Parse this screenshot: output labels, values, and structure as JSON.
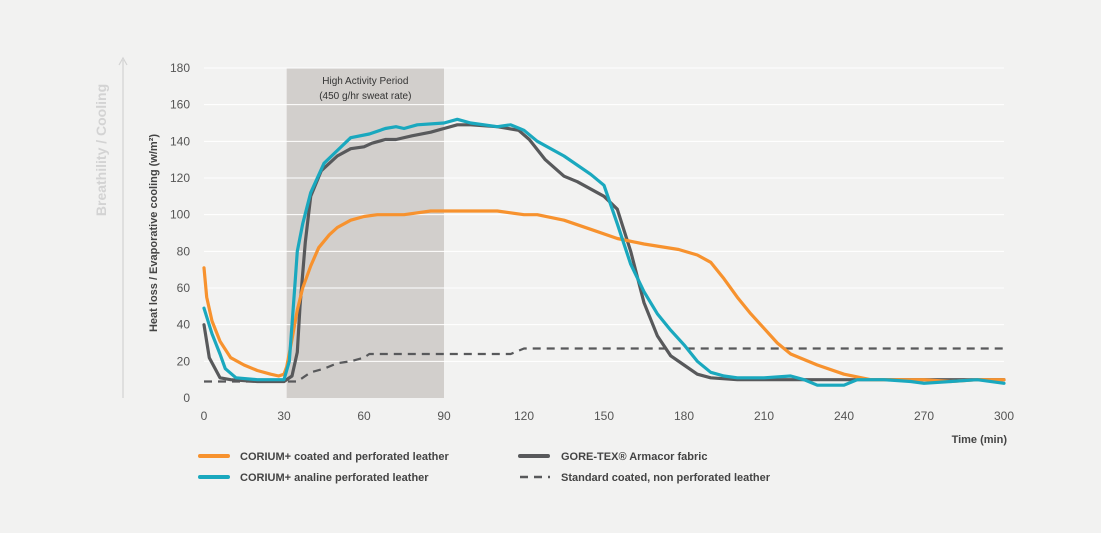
{
  "colors": {
    "background": "#f2f2f1",
    "grid": "#ffffff",
    "shade": "#d2cfcc",
    "orange": "#f7922e",
    "teal": "#1aa8be",
    "dark": "#58595b",
    "dashed": "#58595b",
    "side_title": "#d3d3d3"
  },
  "chart_data": {
    "type": "line",
    "title": "",
    "side_title": "Breathility / Cooling",
    "ylabel": "Heat loss / Evaporative cooling (w/m²)",
    "xlabel": "Time (min)",
    "xlim": [
      0,
      300
    ],
    "ylim": [
      0,
      180
    ],
    "x_ticks": [
      0,
      30,
      60,
      90,
      120,
      150,
      180,
      210,
      240,
      270,
      300
    ],
    "y_ticks": [
      0,
      20,
      40,
      60,
      80,
      100,
      120,
      140,
      160,
      180
    ],
    "grid": "horizontal",
    "legend_position": "bottom",
    "shaded_region": {
      "x_range": [
        31,
        90
      ],
      "label_line1": "High Activity Period",
      "label_line2": "(450 g/hr sweat rate)"
    },
    "series": [
      {
        "name": "CORIUM+ coated and perforated leather",
        "color": "#f7922e",
        "style": "solid",
        "points": [
          [
            0,
            71
          ],
          [
            1,
            55
          ],
          [
            3,
            42
          ],
          [
            6,
            31
          ],
          [
            10,
            22
          ],
          [
            15,
            18
          ],
          [
            20,
            15
          ],
          [
            25,
            13
          ],
          [
            28,
            12
          ],
          [
            30,
            13
          ],
          [
            31,
            17
          ],
          [
            33,
            32
          ],
          [
            35,
            48
          ],
          [
            37,
            60
          ],
          [
            40,
            72
          ],
          [
            43,
            82
          ],
          [
            47,
            89
          ],
          [
            50,
            93
          ],
          [
            55,
            97
          ],
          [
            60,
            99
          ],
          [
            65,
            100
          ],
          [
            75,
            100
          ],
          [
            85,
            102
          ],
          [
            100,
            102
          ],
          [
            110,
            102
          ],
          [
            120,
            100
          ],
          [
            125,
            100
          ],
          [
            135,
            97
          ],
          [
            145,
            92
          ],
          [
            155,
            87
          ],
          [
            165,
            84
          ],
          [
            178,
            81
          ],
          [
            185,
            78
          ],
          [
            190,
            74
          ],
          [
            195,
            65
          ],
          [
            200,
            55
          ],
          [
            205,
            46
          ],
          [
            210,
            38
          ],
          [
            215,
            30
          ],
          [
            220,
            24
          ],
          [
            230,
            18
          ],
          [
            240,
            13
          ],
          [
            250,
            10
          ],
          [
            260,
            10
          ],
          [
            270,
            10
          ],
          [
            280,
            9
          ],
          [
            290,
            10
          ],
          [
            300,
            10
          ]
        ]
      },
      {
        "name": "CORIUM+ analine perforated leather",
        "color": "#1aa8be",
        "style": "solid",
        "points": [
          [
            0,
            49
          ],
          [
            3,
            35
          ],
          [
            6,
            24
          ],
          [
            8,
            16
          ],
          [
            12,
            11
          ],
          [
            20,
            10
          ],
          [
            30,
            10
          ],
          [
            32,
            20
          ],
          [
            33,
            40
          ],
          [
            34,
            60
          ],
          [
            35,
            80
          ],
          [
            37,
            95
          ],
          [
            40,
            112
          ],
          [
            45,
            128
          ],
          [
            50,
            135
          ],
          [
            55,
            142
          ],
          [
            62,
            144
          ],
          [
            68,
            147
          ],
          [
            72,
            148
          ],
          [
            75,
            147
          ],
          [
            80,
            149
          ],
          [
            90,
            150
          ],
          [
            95,
            152
          ],
          [
            100,
            150
          ],
          [
            105,
            149
          ],
          [
            110,
            148
          ],
          [
            115,
            149
          ],
          [
            120,
            146
          ],
          [
            125,
            140
          ],
          [
            135,
            132
          ],
          [
            145,
            122
          ],
          [
            150,
            116
          ],
          [
            155,
            95
          ],
          [
            160,
            73
          ],
          [
            165,
            58
          ],
          [
            170,
            46
          ],
          [
            175,
            37
          ],
          [
            180,
            29
          ],
          [
            185,
            20
          ],
          [
            190,
            14
          ],
          [
            195,
            12
          ],
          [
            200,
            11
          ],
          [
            210,
            11
          ],
          [
            220,
            12
          ],
          [
            225,
            10
          ],
          [
            230,
            7
          ],
          [
            240,
            7
          ],
          [
            245,
            10
          ],
          [
            255,
            10
          ],
          [
            265,
            9
          ],
          [
            270,
            8
          ],
          [
            280,
            9
          ],
          [
            290,
            10
          ],
          [
            300,
            8
          ]
        ]
      },
      {
        "name": "GORE-TEX® Armacor fabric",
        "color": "#58595b",
        "style": "solid",
        "points": [
          [
            0,
            40
          ],
          [
            2,
            22
          ],
          [
            6,
            11
          ],
          [
            10,
            10
          ],
          [
            20,
            9
          ],
          [
            30,
            9
          ],
          [
            33,
            12
          ],
          [
            35,
            25
          ],
          [
            36,
            50
          ],
          [
            38,
            85
          ],
          [
            40,
            110
          ],
          [
            44,
            124
          ],
          [
            50,
            132
          ],
          [
            55,
            136
          ],
          [
            60,
            137
          ],
          [
            63,
            139
          ],
          [
            68,
            141
          ],
          [
            72,
            141
          ],
          [
            78,
            143
          ],
          [
            85,
            145
          ],
          [
            90,
            147
          ],
          [
            95,
            149
          ],
          [
            100,
            149
          ],
          [
            110,
            148
          ],
          [
            118,
            146
          ],
          [
            122,
            141
          ],
          [
            128,
            130
          ],
          [
            135,
            121
          ],
          [
            140,
            118
          ],
          [
            150,
            110
          ],
          [
            155,
            103
          ],
          [
            160,
            80
          ],
          [
            165,
            52
          ],
          [
            170,
            34
          ],
          [
            175,
            23
          ],
          [
            180,
            18
          ],
          [
            185,
            13
          ],
          [
            190,
            11
          ],
          [
            200,
            10
          ],
          [
            220,
            10
          ],
          [
            240,
            10
          ],
          [
            260,
            10
          ],
          [
            280,
            10
          ],
          [
            300,
            10
          ]
        ]
      },
      {
        "name": "Standard coated, non perforated leather",
        "color": "#58595b",
        "style": "dashed",
        "points": [
          [
            0,
            9
          ],
          [
            30,
            9
          ],
          [
            35,
            9
          ],
          [
            40,
            14
          ],
          [
            45,
            16
          ],
          [
            50,
            19
          ],
          [
            55,
            20
          ],
          [
            60,
            22
          ],
          [
            62,
            24
          ],
          [
            70,
            24
          ],
          [
            90,
            24
          ],
          [
            100,
            24
          ],
          [
            110,
            24
          ],
          [
            115,
            24
          ],
          [
            120,
            27
          ],
          [
            150,
            27
          ],
          [
            200,
            27
          ],
          [
            250,
            27
          ],
          [
            300,
            27
          ]
        ]
      }
    ]
  }
}
